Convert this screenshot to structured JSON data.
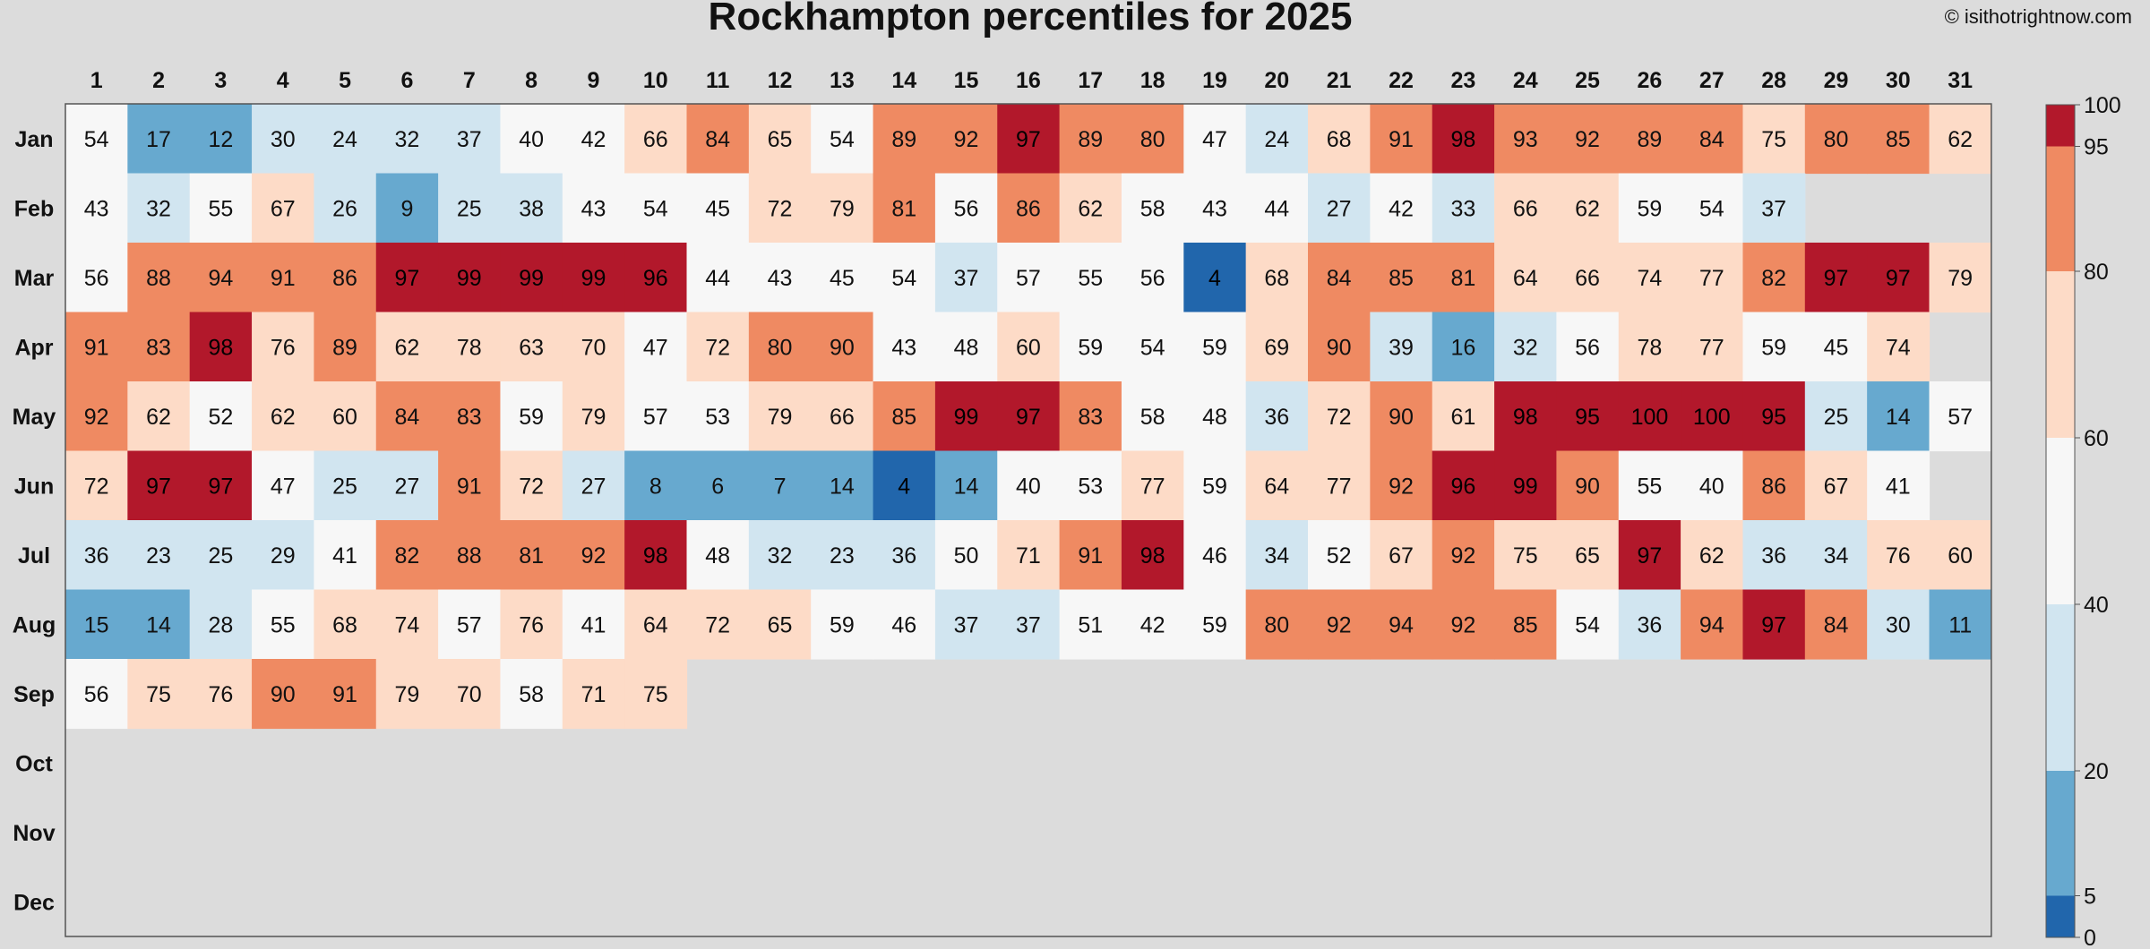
{
  "chart_data": {
    "type": "heatmap",
    "title": "Rockhampton percentiles for 2025",
    "watermark": "© isithotrightnow.com",
    "days": [
      "1",
      "2",
      "3",
      "4",
      "5",
      "6",
      "7",
      "8",
      "9",
      "10",
      "11",
      "12",
      "13",
      "14",
      "15",
      "16",
      "17",
      "18",
      "19",
      "20",
      "21",
      "22",
      "23",
      "24",
      "25",
      "26",
      "27",
      "28",
      "29",
      "30",
      "31"
    ],
    "months": [
      "Jan",
      "Feb",
      "Mar",
      "Apr",
      "May",
      "Jun",
      "Jul",
      "Aug",
      "Sep",
      "Oct",
      "Nov",
      "Dec"
    ],
    "values": [
      [
        54,
        17,
        12,
        30,
        24,
        32,
        37,
        40,
        42,
        66,
        84,
        65,
        54,
        89,
        92,
        97,
        89,
        80,
        47,
        24,
        68,
        91,
        98,
        93,
        92,
        89,
        84,
        75,
        80,
        85,
        62
      ],
      [
        43,
        32,
        55,
        67,
        26,
        9,
        25,
        38,
        43,
        54,
        45,
        72,
        79,
        81,
        56,
        86,
        62,
        58,
        43,
        44,
        27,
        42,
        33,
        66,
        62,
        59,
        54,
        37,
        null,
        null,
        null
      ],
      [
        56,
        88,
        94,
        91,
        86,
        97,
        99,
        99,
        99,
        96,
        44,
        43,
        45,
        54,
        37,
        57,
        55,
        56,
        4,
        68,
        84,
        85,
        81,
        64,
        66,
        74,
        77,
        82,
        97,
        97,
        79
      ],
      [
        91,
        83,
        98,
        76,
        89,
        62,
        78,
        63,
        70,
        47,
        72,
        80,
        90,
        43,
        48,
        60,
        59,
        54,
        59,
        69,
        90,
        39,
        16,
        32,
        56,
        78,
        77,
        59,
        45,
        74,
        null
      ],
      [
        92,
        62,
        52,
        62,
        60,
        84,
        83,
        59,
        79,
        57,
        53,
        79,
        66,
        85,
        99,
        97,
        83,
        58,
        48,
        36,
        72,
        90,
        61,
        98,
        95,
        100,
        100,
        95,
        25,
        14,
        57
      ],
      [
        72,
        97,
        97,
        47,
        25,
        27,
        91,
        72,
        27,
        8,
        6,
        7,
        14,
        4,
        14,
        40,
        53,
        77,
        59,
        64,
        77,
        92,
        96,
        99,
        90,
        55,
        40,
        86,
        67,
        41,
        null
      ],
      [
        36,
        23,
        25,
        29,
        41,
        82,
        88,
        81,
        92,
        98,
        48,
        32,
        23,
        36,
        50,
        71,
        91,
        98,
        46,
        34,
        52,
        67,
        92,
        75,
        65,
        97,
        62,
        36,
        34,
        76,
        60
      ],
      [
        15,
        14,
        28,
        55,
        68,
        74,
        57,
        76,
        41,
        64,
        72,
        65,
        59,
        46,
        37,
        37,
        51,
        42,
        59,
        80,
        92,
        94,
        92,
        85,
        54,
        36,
        94,
        97,
        84,
        30,
        11
      ],
      [
        56,
        75,
        76,
        90,
        91,
        79,
        70,
        58,
        71,
        75,
        null,
        null,
        null,
        null,
        null,
        null,
        null,
        null,
        null,
        null,
        null,
        null,
        null,
        null,
        null,
        null,
        null,
        null,
        null,
        null,
        null
      ],
      [
        null,
        null,
        null,
        null,
        null,
        null,
        null,
        null,
        null,
        null,
        null,
        null,
        null,
        null,
        null,
        null,
        null,
        null,
        null,
        null,
        null,
        null,
        null,
        null,
        null,
        null,
        null,
        null,
        null,
        null,
        null
      ],
      [
        null,
        null,
        null,
        null,
        null,
        null,
        null,
        null,
        null,
        null,
        null,
        null,
        null,
        null,
        null,
        null,
        null,
        null,
        null,
        null,
        null,
        null,
        null,
        null,
        null,
        null,
        null,
        null,
        null,
        null,
        null
      ],
      [
        null,
        null,
        null,
        null,
        null,
        null,
        null,
        null,
        null,
        null,
        null,
        null,
        null,
        null,
        null,
        null,
        null,
        null,
        null,
        null,
        null,
        null,
        null,
        null,
        null,
        null,
        null,
        null,
        null,
        null,
        null
      ]
    ],
    "color_scale": {
      "breaks": [
        0,
        5,
        20,
        40,
        60,
        80,
        95,
        100
      ],
      "colors": [
        "#2166ac",
        "#67a9cf",
        "#d1e5f0",
        "#f7f7f7",
        "#fddbc7",
        "#ef8a62",
        "#b2182b"
      ]
    },
    "colorbar_ticks": [
      "0",
      "5",
      "20",
      "40",
      "60",
      "80",
      "95",
      "100"
    ],
    "empty_color": "#dcdcdc"
  }
}
